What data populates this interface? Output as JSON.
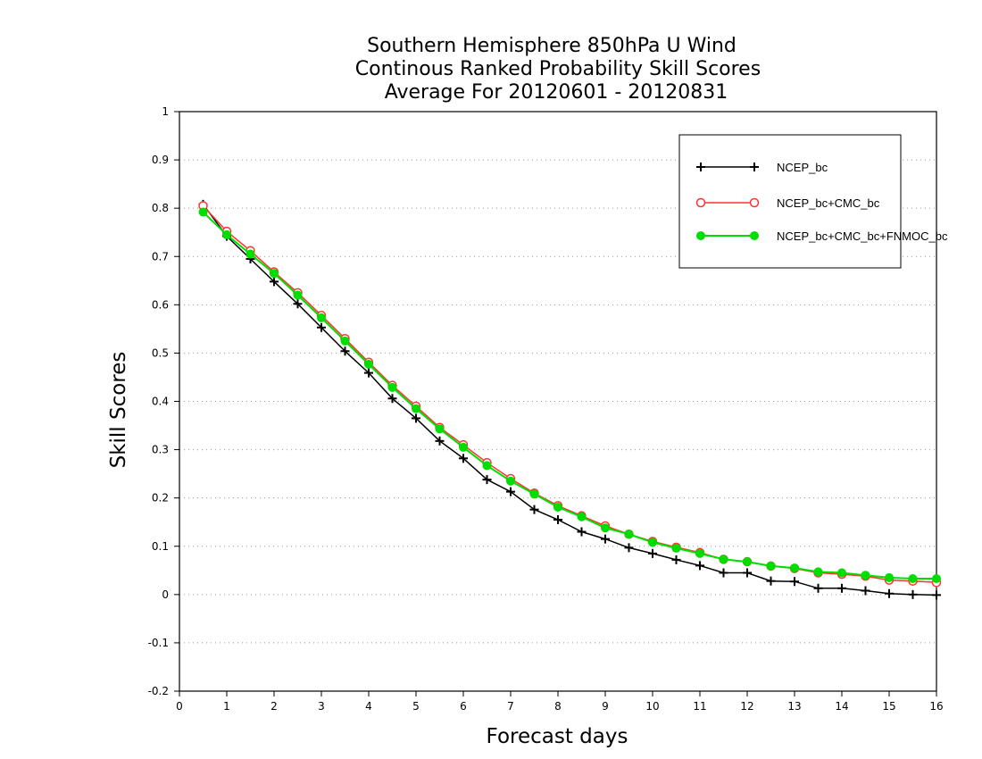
{
  "chart_data": {
    "type": "line",
    "title_lines": [
      "Southern Hemisphere 850hPa U Wind",
      "Continous Ranked Probability Skill Scores",
      "Average For 20120601 - 20120831"
    ],
    "xlabel": "Forecast days",
    "ylabel": "Skill Scores",
    "xlim": [
      0,
      16
    ],
    "ylim": [
      -0.2,
      1
    ],
    "xticks": [
      "0",
      "1",
      "2",
      "3",
      "4",
      "5",
      "6",
      "7",
      "8",
      "9",
      "10",
      "11",
      "12",
      "13",
      "14",
      "15",
      "16"
    ],
    "yticks": [
      "-0.2",
      "-0.1",
      "0",
      "0.1",
      "0.2",
      "0.3",
      "0.4",
      "0.5",
      "0.6",
      "0.7",
      "0.8",
      "0.9",
      "1"
    ],
    "grid": "horizontal dotted",
    "legend_position": "top-right",
    "x": [
      0.5,
      1,
      1.5,
      2,
      2.5,
      3,
      3.5,
      4,
      4.5,
      5,
      5.5,
      6,
      6.5,
      7,
      7.5,
      8,
      8.5,
      9,
      9.5,
      10,
      10.5,
      11,
      11.5,
      12,
      12.5,
      13,
      13.5,
      14,
      14.5,
      15,
      15.5,
      16
    ],
    "series": [
      {
        "name": "NCEP_bc",
        "color": "#000000",
        "marker": "plus",
        "values": [
          0.808,
          0.742,
          0.695,
          0.648,
          0.602,
          0.553,
          0.504,
          0.459,
          0.406,
          0.365,
          0.318,
          0.282,
          0.238,
          0.213,
          0.176,
          0.155,
          0.13,
          0.115,
          0.097,
          0.085,
          0.072,
          0.06,
          0.045,
          0.045,
          0.028,
          0.027,
          0.013,
          0.013,
          0.008,
          0.002,
          0.0,
          -0.001
        ]
      },
      {
        "name": "NCEP_bc+CMC_bc",
        "color": "#ff3333",
        "marker": "open-circle",
        "values": [
          0.805,
          0.752,
          0.712,
          0.668,
          0.625,
          0.578,
          0.53,
          0.481,
          0.433,
          0.39,
          0.346,
          0.31,
          0.273,
          0.24,
          0.21,
          0.184,
          0.163,
          0.142,
          0.125,
          0.11,
          0.098,
          0.087,
          0.073,
          0.068,
          0.059,
          0.054,
          0.045,
          0.042,
          0.038,
          0.03,
          0.028,
          0.025
        ]
      },
      {
        "name": "NCEP_bc+CMC_bc+FNMOC_bc",
        "color": "#00dd00",
        "marker": "filled-circle",
        "values": [
          0.792,
          0.745,
          0.705,
          0.665,
          0.62,
          0.573,
          0.525,
          0.477,
          0.429,
          0.385,
          0.343,
          0.305,
          0.267,
          0.235,
          0.208,
          0.181,
          0.161,
          0.138,
          0.125,
          0.108,
          0.096,
          0.085,
          0.073,
          0.068,
          0.059,
          0.055,
          0.047,
          0.045,
          0.04,
          0.035,
          0.033,
          0.033
        ]
      }
    ]
  }
}
